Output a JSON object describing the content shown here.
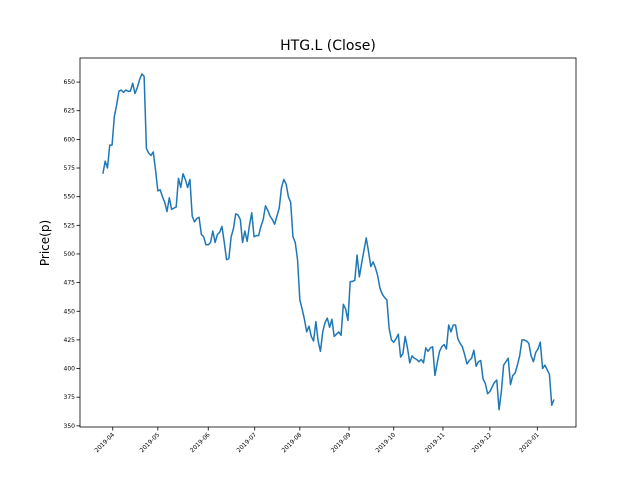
{
  "chart_data": {
    "type": "line",
    "title": "HTG.L (Close)",
    "y_label": "Price(p)",
    "series": [
      {
        "name": "Close",
        "color": "#1f77b4",
        "values": [
          570,
          581,
          575,
          595,
          595,
          620,
          630,
          642,
          643,
          641,
          643,
          642,
          642,
          649,
          640,
          645,
          652,
          657,
          655,
          592,
          588,
          586,
          589,
          573,
          555,
          556,
          550,
          545,
          537,
          549,
          539,
          540,
          541,
          566,
          558,
          570,
          565,
          558,
          565,
          533,
          528,
          531,
          532,
          517,
          515,
          508,
          508,
          510,
          520,
          510,
          517,
          519,
          524,
          510,
          495,
          496,
          515,
          522,
          535,
          534,
          530,
          510,
          520,
          511,
          525,
          536,
          515,
          516,
          516,
          524,
          530,
          542,
          538,
          533,
          530,
          526,
          533,
          540,
          558,
          565,
          561,
          550,
          545,
          515,
          510,
          495,
          460,
          452,
          443,
          432,
          437,
          428,
          424,
          441,
          424,
          415,
          432,
          440,
          444,
          436,
          443,
          428,
          430,
          432,
          429,
          456,
          452,
          442,
          476,
          476,
          477,
          499,
          480,
          492,
          503,
          514,
          502,
          489,
          493,
          488,
          481,
          470,
          465,
          462,
          460,
          435,
          425,
          423,
          426,
          430,
          410,
          413,
          428,
          418,
          405,
          411,
          409,
          408,
          406,
          408,
          405,
          418,
          415,
          418,
          419,
          394,
          405,
          415,
          419,
          421,
          417,
          438,
          432,
          438,
          438,
          426,
          422,
          419,
          412,
          404,
          407,
          409,
          416,
          402,
          406,
          407,
          391,
          387,
          378,
          380,
          384,
          388,
          390,
          364,
          380,
          403,
          406,
          409,
          386,
          394,
          396,
          403,
          411,
          425,
          425,
          424,
          422,
          411,
          406,
          414,
          417,
          423,
          400,
          403,
          399,
          395,
          368,
          373
        ]
      }
    ],
    "xlim": [
      -10,
      206.6
    ],
    "xticks": [
      {
        "value": 4.3,
        "label": "2019-04"
      },
      {
        "value": 24,
        "label": "2019-05"
      },
      {
        "value": 46,
        "label": "2019-06"
      },
      {
        "value": 66.3,
        "label": "2019-07"
      },
      {
        "value": 86,
        "label": "2019-08"
      },
      {
        "value": 107.5,
        "label": "2019-09"
      },
      {
        "value": 127,
        "label": "2019-10"
      },
      {
        "value": 148.5,
        "label": "2019-11"
      },
      {
        "value": 169,
        "label": "2019-12"
      },
      {
        "value": 189.7,
        "label": "2020-01"
      }
    ],
    "ylim": [
      349,
      671
    ],
    "yticks": [
      350,
      375,
      400,
      425,
      450,
      475,
      500,
      525,
      550,
      575,
      600,
      625,
      650
    ]
  }
}
